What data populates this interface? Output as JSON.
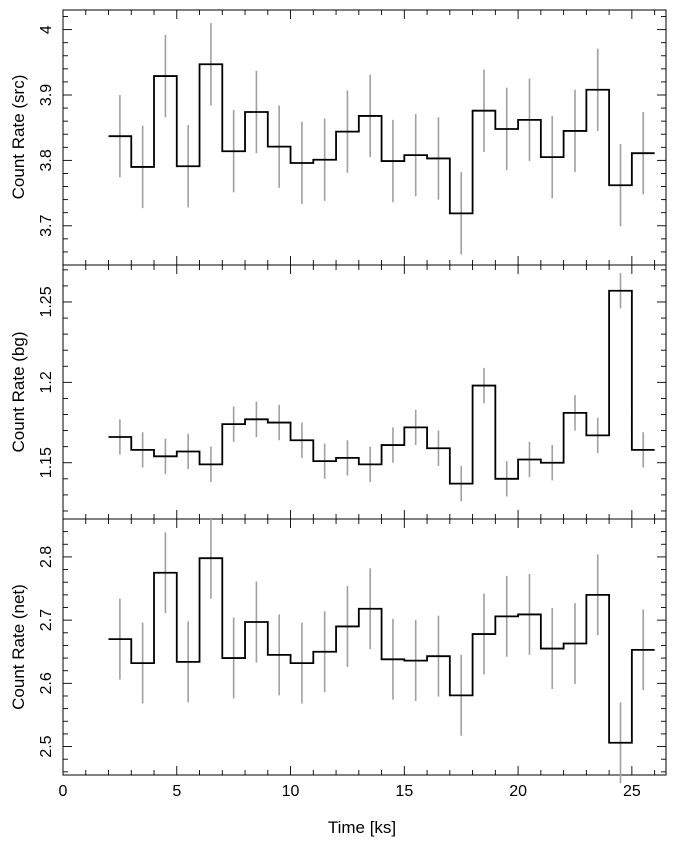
{
  "chart_data": [
    {
      "type": "line",
      "style": "step-histogram-with-error-bars",
      "ylabel": "Count Rate (src)",
      "xlim": [
        0,
        26.5
      ],
      "ylim": [
        3.64,
        4.03
      ],
      "yticks": [
        3.7,
        3.8,
        3.9,
        4
      ],
      "ytick_labels": [
        "3.7",
        "3.8",
        "3.9",
        "4"
      ],
      "bin_edges": [
        2,
        3,
        4,
        5,
        6,
        7,
        8,
        9,
        10,
        11,
        12,
        13,
        14,
        15,
        16,
        17,
        18,
        19,
        20,
        21,
        22,
        23,
        24,
        25,
        26
      ],
      "x": [
        2.5,
        3.5,
        4.5,
        5.5,
        6.5,
        7.5,
        8.5,
        9.5,
        10.5,
        11.5,
        12.5,
        13.5,
        14.5,
        15.5,
        16.5,
        17.5,
        18.5,
        19.5,
        20.5,
        21.5,
        22.5,
        23.5,
        24.5,
        25.5
      ],
      "values": [
        3.837,
        3.79,
        3.929,
        3.791,
        3.947,
        3.814,
        3.874,
        3.821,
        3.796,
        3.801,
        3.844,
        3.868,
        3.799,
        3.808,
        3.803,
        3.719,
        3.876,
        3.848,
        3.862,
        3.805,
        3.845,
        3.908,
        3.762,
        3.811
      ],
      "errors": [
        0.063,
        0.063,
        0.063,
        0.063,
        0.063,
        0.063,
        0.063,
        0.063,
        0.063,
        0.063,
        0.063,
        0.063,
        0.063,
        0.063,
        0.063,
        0.063,
        0.063,
        0.063,
        0.063,
        0.063,
        0.063,
        0.063,
        0.063,
        0.063
      ]
    },
    {
      "type": "line",
      "style": "step-histogram-with-error-bars",
      "ylabel": "Count Rate (bg)",
      "xlim": [
        0,
        26.5
      ],
      "ylim": [
        1.115,
        1.273
      ],
      "yticks": [
        1.15,
        1.2,
        1.25
      ],
      "ytick_labels": [
        "1.15",
        "1.2",
        "1.25"
      ],
      "bin_edges": [
        2,
        3,
        4,
        5,
        6,
        7,
        8,
        9,
        10,
        11,
        12,
        13,
        14,
        15,
        16,
        17,
        18,
        19,
        20,
        21,
        22,
        23,
        24,
        25,
        26
      ],
      "x": [
        2.5,
        3.5,
        4.5,
        5.5,
        6.5,
        7.5,
        8.5,
        9.5,
        10.5,
        11.5,
        12.5,
        13.5,
        14.5,
        15.5,
        16.5,
        17.5,
        18.5,
        19.5,
        20.5,
        21.5,
        22.5,
        23.5,
        24.5,
        25.5
      ],
      "values": [
        1.166,
        1.158,
        1.154,
        1.157,
        1.149,
        1.174,
        1.177,
        1.175,
        1.164,
        1.151,
        1.153,
        1.149,
        1.161,
        1.172,
        1.159,
        1.137,
        1.198,
        1.14,
        1.152,
        1.15,
        1.181,
        1.167,
        1.257,
        1.158
      ],
      "errors": [
        0.011,
        0.011,
        0.011,
        0.011,
        0.011,
        0.011,
        0.011,
        0.011,
        0.011,
        0.011,
        0.011,
        0.011,
        0.011,
        0.011,
        0.011,
        0.011,
        0.011,
        0.011,
        0.011,
        0.011,
        0.011,
        0.011,
        0.011,
        0.011
      ]
    },
    {
      "type": "line",
      "style": "step-histogram-with-error-bars",
      "ylabel": "Count Rate (net)",
      "xlabel": "Time [ks]",
      "xlim": [
        0,
        26.5
      ],
      "xticks": [
        0,
        5,
        10,
        15,
        20,
        25
      ],
      "xtick_labels": [
        "0",
        "5",
        "10",
        "15",
        "20",
        "25"
      ],
      "ylim": [
        2.455,
        2.86
      ],
      "yticks": [
        2.5,
        2.6,
        2.7,
        2.8
      ],
      "ytick_labels": [
        "2.5",
        "2.6",
        "2.7",
        "2.8"
      ],
      "bin_edges": [
        2,
        3,
        4,
        5,
        6,
        7,
        8,
        9,
        10,
        11,
        12,
        13,
        14,
        15,
        16,
        17,
        18,
        19,
        20,
        21,
        22,
        23,
        24,
        25,
        26
      ],
      "x": [
        2.5,
        3.5,
        4.5,
        5.5,
        6.5,
        7.5,
        8.5,
        9.5,
        10.5,
        11.5,
        12.5,
        13.5,
        14.5,
        15.5,
        16.5,
        17.5,
        18.5,
        19.5,
        20.5,
        21.5,
        22.5,
        23.5,
        24.5,
        25.5
      ],
      "values": [
        2.67,
        2.632,
        2.775,
        2.634,
        2.798,
        2.64,
        2.697,
        2.645,
        2.632,
        2.65,
        2.69,
        2.718,
        2.638,
        2.636,
        2.643,
        2.581,
        2.678,
        2.706,
        2.709,
        2.655,
        2.663,
        2.74,
        2.506,
        2.653
      ],
      "errors": [
        0.064,
        0.064,
        0.064,
        0.064,
        0.064,
        0.064,
        0.064,
        0.064,
        0.064,
        0.064,
        0.064,
        0.064,
        0.064,
        0.064,
        0.064,
        0.064,
        0.064,
        0.064,
        0.064,
        0.064,
        0.064,
        0.064,
        0.064,
        0.064
      ]
    }
  ]
}
